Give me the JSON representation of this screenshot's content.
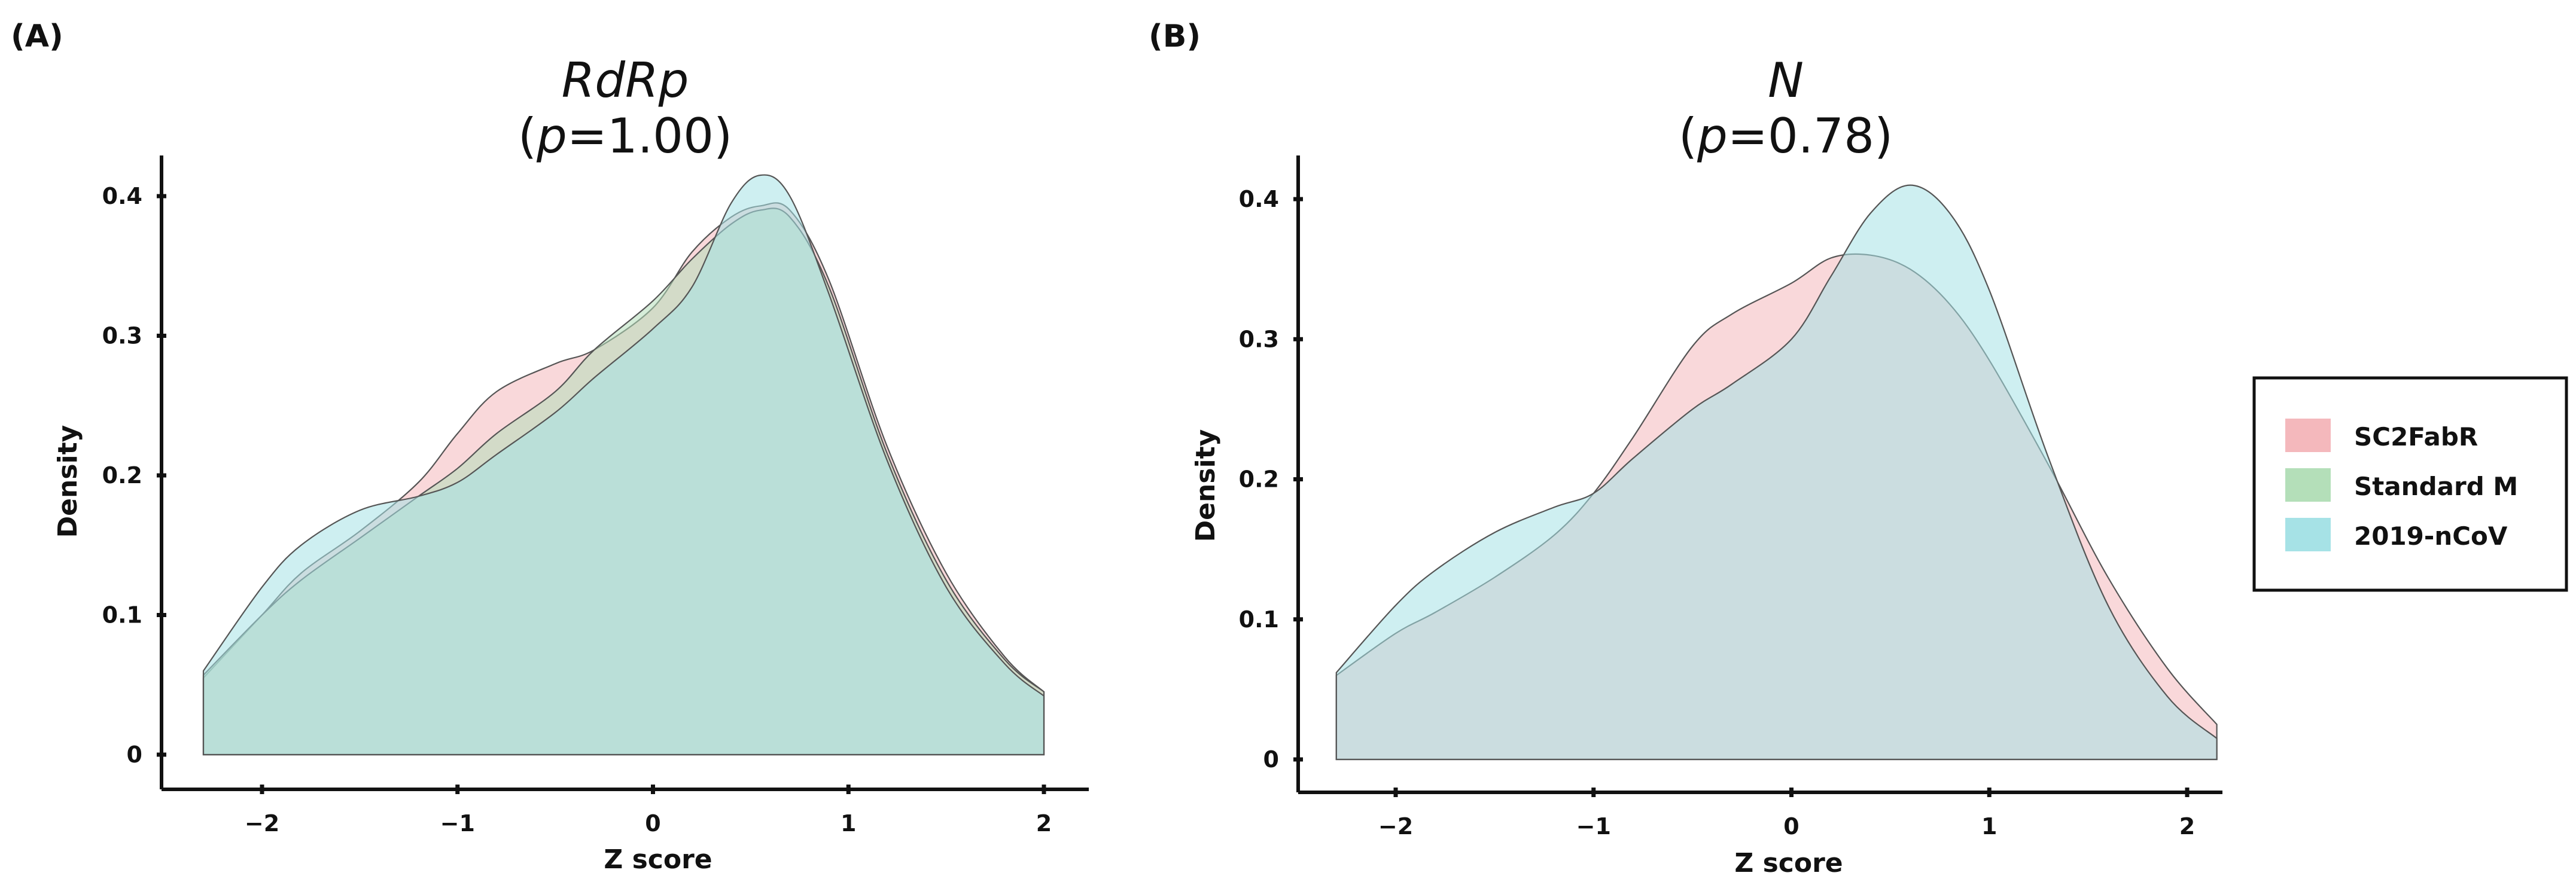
{
  "figure": {
    "panel_a_tag": "(A)",
    "panel_b_tag": "(B)"
  },
  "legend": {
    "entries": [
      {
        "label": "SC2FabR",
        "color": "#f4b8bc"
      },
      {
        "label": "Standard M",
        "color": "#b4dfb9"
      },
      {
        "label": "2019-nCoV",
        "color": "#a6e2e6"
      }
    ]
  },
  "chart_data": [
    {
      "type": "area",
      "panel": "(A)",
      "title_gene": "RdRp",
      "title_open": "(",
      "title_p": "p",
      "title_rest": "=1.00)",
      "xlabel": "Z score",
      "ylabel": "Density",
      "xlim": [
        -2.5,
        2.2
      ],
      "ylim": [
        -0.02,
        0.43
      ],
      "xticks": [
        -2,
        -1,
        0,
        1,
        2
      ],
      "xtick_labels": [
        "−2",
        "−1",
        "0",
        "1",
        "2"
      ],
      "yticks": [
        0,
        0.1,
        0.2,
        0.3,
        0.4
      ],
      "ytick_labels": [
        "0",
        "0.1",
        "0.2",
        "0.3",
        "0.4"
      ],
      "x": [
        -2.3,
        -2.0,
        -1.8,
        -1.5,
        -1.2,
        -1.0,
        -0.8,
        -0.5,
        -0.3,
        0.0,
        0.2,
        0.4,
        0.55,
        0.7,
        0.9,
        1.2,
        1.5,
        1.8,
        2.0
      ],
      "series": [
        {
          "name": "SC2FabR",
          "color": "#f4b8bc",
          "values": [
            0.055,
            0.1,
            0.13,
            0.16,
            0.195,
            0.23,
            0.26,
            0.28,
            0.29,
            0.32,
            0.36,
            0.385,
            0.393,
            0.39,
            0.34,
            0.22,
            0.13,
            0.07,
            0.045
          ]
        },
        {
          "name": "Standard M",
          "color": "#b4dfb9",
          "values": [
            0.057,
            0.1,
            0.125,
            0.155,
            0.185,
            0.205,
            0.23,
            0.26,
            0.29,
            0.325,
            0.355,
            0.38,
            0.39,
            0.385,
            0.335,
            0.215,
            0.125,
            0.068,
            0.045
          ]
        },
        {
          "name": "2019-nCoV",
          "color": "#a6e2e6",
          "values": [
            0.06,
            0.12,
            0.15,
            0.175,
            0.185,
            0.195,
            0.215,
            0.245,
            0.27,
            0.305,
            0.335,
            0.395,
            0.415,
            0.4,
            0.33,
            0.21,
            0.12,
            0.065,
            0.042
          ]
        }
      ]
    },
    {
      "type": "area",
      "panel": "(B)",
      "title_gene": "N",
      "title_open": "(",
      "title_p": "p",
      "title_rest": "=0.78)",
      "xlabel": "Z score",
      "ylabel": "Density",
      "xlim": [
        -2.5,
        2.2
      ],
      "ylim": [
        -0.02,
        0.43
      ],
      "xticks": [
        -2,
        -1,
        0,
        1,
        2
      ],
      "xtick_labels": [
        "−2",
        "−1",
        "0",
        "1",
        "2"
      ],
      "yticks": [
        0,
        0.1,
        0.2,
        0.3,
        0.4
      ],
      "ytick_labels": [
        "0",
        "0.1",
        "0.2",
        "0.3",
        "0.4"
      ],
      "x": [
        -2.3,
        -2.0,
        -1.8,
        -1.5,
        -1.2,
        -1.0,
        -0.8,
        -0.5,
        -0.3,
        0.0,
        0.2,
        0.4,
        0.6,
        0.8,
        1.0,
        1.3,
        1.6,
        1.9,
        2.15
      ],
      "series": [
        {
          "name": "SC2FabR",
          "color": "#f4b8bc",
          "values": [
            0.06,
            0.09,
            0.105,
            0.13,
            0.16,
            0.19,
            0.23,
            0.295,
            0.318,
            0.34,
            0.358,
            0.36,
            0.35,
            0.325,
            0.285,
            0.21,
            0.13,
            0.065,
            0.025
          ]
        },
        {
          "name": "2019-nCoV",
          "color": "#a6e2e6",
          "values": [
            0.062,
            0.11,
            0.135,
            0.162,
            0.18,
            0.19,
            0.215,
            0.25,
            0.268,
            0.3,
            0.345,
            0.39,
            0.41,
            0.39,
            0.335,
            0.215,
            0.11,
            0.045,
            0.015
          ]
        }
      ]
    }
  ]
}
